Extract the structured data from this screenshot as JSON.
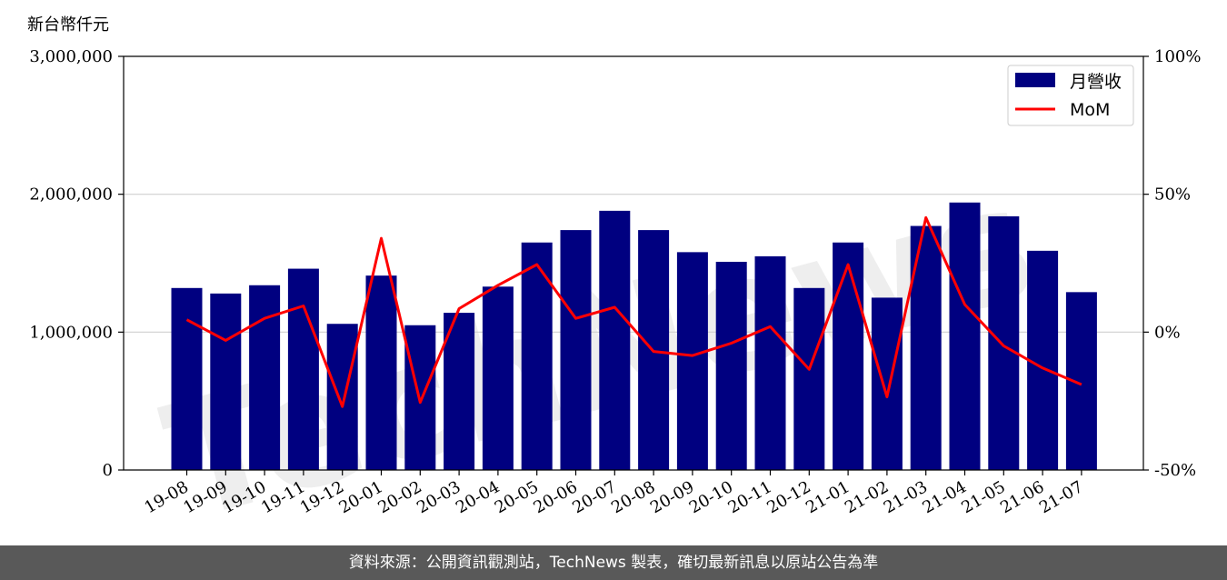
{
  "chart_data": {
    "type": "bar",
    "unit_label": "新台幣仟元",
    "categories": [
      "19-08",
      "19-09",
      "19-10",
      "19-11",
      "19-12",
      "20-01",
      "20-02",
      "20-03",
      "20-04",
      "20-05",
      "20-06",
      "20-07",
      "20-08",
      "20-09",
      "20-10",
      "20-11",
      "20-12",
      "21-01",
      "21-02",
      "21-03",
      "21-04",
      "21-05",
      "21-06",
      "21-07"
    ],
    "series": [
      {
        "name": "月營收",
        "type": "bar",
        "axis": "left",
        "color": "#000080",
        "values": [
          1320000,
          1280000,
          1340000,
          1460000,
          1060000,
          1410000,
          1050000,
          1140000,
          1330000,
          1650000,
          1740000,
          1880000,
          1740000,
          1580000,
          1510000,
          1550000,
          1320000,
          1650000,
          1250000,
          1770000,
          1940000,
          1840000,
          1590000,
          1290000
        ]
      },
      {
        "name": "MoM",
        "type": "line",
        "axis": "right",
        "color": "#ff0000",
        "values": [
          4.5,
          -3,
          5,
          9.5,
          -27,
          34,
          -25.5,
          8.5,
          17,
          24.5,
          5,
          9,
          -7,
          -8.5,
          -4,
          2,
          -13.5,
          24.5,
          -23.5,
          41.5,
          10,
          -5,
          -13,
          -19
        ]
      }
    ],
    "left_axis": {
      "ylim": [
        0,
        3000000
      ],
      "ticks": [
        0,
        1000000,
        2000000,
        3000000
      ],
      "tick_labels": [
        "0",
        "1,000,000",
        "2,000,000",
        "3,000,000"
      ]
    },
    "right_axis": {
      "ylim": [
        -50,
        100
      ],
      "ticks": [
        -50,
        0,
        50,
        100
      ],
      "tick_labels": [
        "-50%",
        "0%",
        "50%",
        "100%"
      ]
    },
    "grid": true,
    "legend_position": "top-right",
    "xlabel": "",
    "ylabel": "",
    "title": ""
  },
  "watermark": "TechNews",
  "footer": {
    "text": "資料來源：公開資訊觀測站，TechNews 製表，確切最新訊息以原站公告為準"
  }
}
